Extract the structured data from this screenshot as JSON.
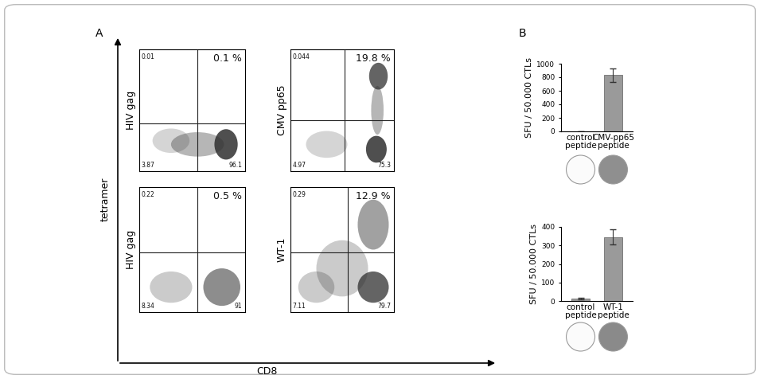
{
  "panel_labels": [
    "A",
    "B"
  ],
  "shared_axis_labels": {
    "x": "CD8",
    "y": "tetramer"
  },
  "chart_data": [
    {
      "type": "dot_plot",
      "ylabel": "HIV gag",
      "tick_labels": false,
      "quadrants": {
        "upper_left": {
          "value": 0.01,
          "label": "0.01"
        },
        "upper_right": {
          "value": 0.1,
          "label": "0.1 %"
        },
        "lower_left": {
          "value": 3.87,
          "label": "3.87"
        },
        "lower_right": {
          "value": 96.1,
          "label": "96.1"
        }
      }
    },
    {
      "type": "dot_plot",
      "ylabel": "CMV pp65",
      "tick_labels": false,
      "quadrants": {
        "upper_left": {
          "value": 0.044,
          "label": "0.044"
        },
        "upper_right": {
          "value": 19.8,
          "label": "19.8 %"
        },
        "lower_left": {
          "value": 4.97,
          "label": "4.97"
        },
        "lower_right": {
          "value": 75.3,
          "label": "75.3"
        }
      }
    },
    {
      "type": "dot_plot",
      "ylabel": "HIV gag",
      "tick_labels": false,
      "quadrants": {
        "upper_left": {
          "value": 0.22,
          "label": "0.22"
        },
        "upper_right": {
          "value": 0.5,
          "label": "0.5 %"
        },
        "lower_left": {
          "value": 8.34,
          "label": "8.34"
        },
        "lower_right": {
          "value": 91,
          "label": "91"
        }
      }
    },
    {
      "type": "dot_plot",
      "ylabel": "WT-1",
      "tick_labels": false,
      "quadrants": {
        "upper_left": {
          "value": 0.29,
          "label": "0.29"
        },
        "upper_right": {
          "value": 12.9,
          "label": "12.9 %"
        },
        "lower_left": {
          "value": 7.11,
          "label": "7.11"
        },
        "lower_right": {
          "value": 79.7,
          "label": "79.7"
        }
      }
    },
    {
      "type": "bar",
      "ylabel": "SFU / 50.000 CTLs",
      "categories": [
        "control\npeptide",
        "CMV-pp65\npeptide"
      ],
      "values": [
        3,
        830
      ],
      "errors": [
        2,
        100
      ],
      "color": "#9a9a9a",
      "ylim": [
        0,
        1000
      ],
      "yticks": [
        0,
        200,
        400,
        600,
        800,
        1000
      ]
    },
    {
      "type": "bar",
      "ylabel": "SFU / 50.000 CTLs",
      "categories": [
        "control\npeptide",
        "WT-1\npeptide"
      ],
      "values": [
        12,
        345
      ],
      "errors": [
        5,
        40
      ],
      "color": "#9a9a9a",
      "ylim": [
        0,
        400
      ],
      "yticks": [
        0,
        100,
        200,
        300,
        400
      ]
    }
  ]
}
